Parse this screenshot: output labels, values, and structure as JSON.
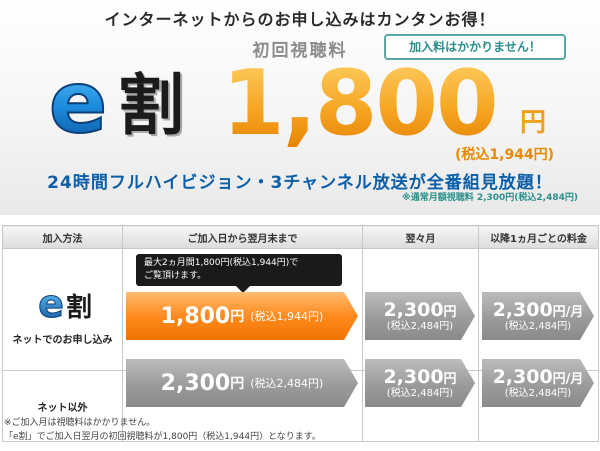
{
  "banner": {
    "headline": "インターネットからのお申し込みはカンタンお得！",
    "subtitle": "初回視聴料",
    "no_fee_badge": "加入料はかかりません！",
    "logo_letter": "e",
    "logo_kanji": "割",
    "price": "1,800",
    "price_unit": "円",
    "price_tax": "(税込1,944円)",
    "hd_line": "24時間フルハイビジョン・3チャンネル放送が全番組見放題！",
    "regular_note": "※通常月額視聴料 2,300円(税込2,484円)"
  },
  "table": {
    "headers": [
      "加入方法",
      "ご加入日から翌月末まで",
      "翌々月",
      "以降1ヵ月ごとの料金"
    ],
    "row1": {
      "method_logo_letter": "e",
      "method_logo_kanji": "割",
      "method_label": "ネットでのお申し込み",
      "tooltip_line1": "最大2ヵ月間1,800円(税込1,944円)で",
      "tooltip_line2": "ご覧頂けます。",
      "price1_num": "1,800",
      "price1_yen": "円",
      "price1_tax": "(税込1,944円)",
      "price2_num": "2,300",
      "price2_yen": "円",
      "price2_tax": "(税込2,484円)",
      "price3_num": "2,300",
      "price3_yen": "円/月",
      "price3_tax": "(税込2,484円)"
    },
    "row2": {
      "method_label": "ネット以外",
      "price1_num": "2,300",
      "price1_yen": "円",
      "price1_tax": "(税込2,484円)",
      "price2_num": "2,300",
      "price2_yen": "円",
      "price2_tax": "(税込2,484円)",
      "price3_num": "2,300",
      "price3_yen": "円/月",
      "price3_tax": "(税込2,484円)"
    }
  },
  "footer": {
    "note1": "※ご加入月は視聴料はかかりません。",
    "note2": "「e割」でご加入日翌月の初回視聴料が1,800円（税込1,944円）となります。"
  },
  "colors": {
    "accent_orange": "#f5a623",
    "accent_blue": "#0a5fa8",
    "badge_teal": "#2b8f8a"
  }
}
